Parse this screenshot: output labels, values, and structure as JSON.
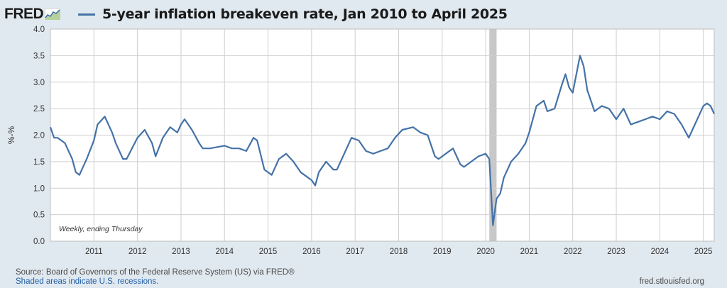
{
  "header": {
    "logo_text": "FRED",
    "logo_icon": "fred-graph-icon",
    "title": "5-year inflation breakeven rate, Jan 2010 to April 2025"
  },
  "colors": {
    "series": "#4572a7",
    "background": "#e1e9f0",
    "plot_background": "#ffffff",
    "grid": "#cfcfcf",
    "recession": "#c8c8c8"
  },
  "footer": {
    "source": "Source: Board of Governors of the Federal Reserve System (US) via FRED®",
    "note": "Shaded areas indicate U.S. recessions.",
    "url": "fred.stlouisfed.org"
  },
  "chart_data": {
    "type": "line",
    "title": "5-year inflation breakeven rate, Jan 2010 to April 2025",
    "ylabel": "%-%",
    "xlabel": "",
    "annotation": "Weekly, ending Thursday",
    "ylim": [
      0.0,
      4.0
    ],
    "xlim": [
      "2010-01",
      "2025-04"
    ],
    "yticks": [
      "0.0",
      "0.5",
      "1.0",
      "1.5",
      "2.0",
      "2.5",
      "3.0",
      "3.5",
      "4.0"
    ],
    "xticks": [
      "2011",
      "2012",
      "2013",
      "2014",
      "2015",
      "2016",
      "2017",
      "2018",
      "2019",
      "2020",
      "2021",
      "2022",
      "2023",
      "2024",
      "2025"
    ],
    "grid": true,
    "recession_shading": [
      {
        "start": "2020-02",
        "end": "2020-04"
      }
    ],
    "series": [
      {
        "x": [
          "2010-01",
          "2010-02",
          "2010-03",
          "2010-05",
          "2010-07",
          "2010-08",
          "2010-09",
          "2010-11",
          "2011-01",
          "2011-02",
          "2011-04",
          "2011-06",
          "2011-07",
          "2011-09",
          "2011-10",
          "2012-01",
          "2012-03",
          "2012-05",
          "2012-06",
          "2012-08",
          "2012-09",
          "2012-10",
          "2012-12",
          "2013-01",
          "2013-02",
          "2013-04",
          "2013-06",
          "2013-07",
          "2013-09",
          "2014-01",
          "2014-03",
          "2014-05",
          "2014-07",
          "2014-09",
          "2014-10",
          "2014-12",
          "2015-02",
          "2015-04",
          "2015-06",
          "2015-08",
          "2015-10",
          "2015-12",
          "2016-01",
          "2016-02",
          "2016-03",
          "2016-05",
          "2016-07",
          "2016-08",
          "2016-11",
          "2016-12",
          "2017-02",
          "2017-04",
          "2017-06",
          "2017-08",
          "2017-10",
          "2017-12",
          "2018-02",
          "2018-05",
          "2018-07",
          "2018-09",
          "2018-11",
          "2018-12",
          "2019-02",
          "2019-04",
          "2019-06",
          "2019-07",
          "2019-09",
          "2019-11",
          "2020-01",
          "2020-02",
          "2020-03",
          "2020-04",
          "2020-05",
          "2020-06",
          "2020-08",
          "2020-10",
          "2020-12",
          "2021-01",
          "2021-03",
          "2021-05",
          "2021-06",
          "2021-08",
          "2021-10",
          "2021-11",
          "2021-12",
          "2022-01",
          "2022-03",
          "2022-04",
          "2022-05",
          "2022-06",
          "2022-07",
          "2022-09",
          "2022-11",
          "2023-01",
          "2023-03",
          "2023-05",
          "2023-07",
          "2023-09",
          "2023-11",
          "2024-01",
          "2024-03",
          "2024-05",
          "2024-07",
          "2024-09",
          "2024-10",
          "2024-12",
          "2025-01",
          "2025-02",
          "2025-03",
          "2025-04"
        ],
        "y": [
          2.15,
          1.95,
          1.95,
          1.85,
          1.55,
          1.3,
          1.25,
          1.55,
          1.9,
          2.2,
          2.35,
          2.05,
          1.85,
          1.55,
          1.55,
          1.95,
          2.1,
          1.85,
          1.6,
          1.95,
          2.05,
          2.15,
          2.05,
          2.2,
          2.3,
          2.1,
          1.85,
          1.75,
          1.75,
          1.8,
          1.75,
          1.75,
          1.7,
          1.95,
          1.9,
          1.35,
          1.25,
          1.55,
          1.65,
          1.5,
          1.3,
          1.2,
          1.15,
          1.05,
          1.3,
          1.5,
          1.35,
          1.35,
          1.8,
          1.95,
          1.9,
          1.7,
          1.65,
          1.7,
          1.75,
          1.95,
          2.1,
          2.15,
          2.05,
          2.0,
          1.6,
          1.55,
          1.65,
          1.75,
          1.45,
          1.4,
          1.5,
          1.6,
          1.65,
          1.55,
          0.3,
          0.8,
          0.9,
          1.2,
          1.5,
          1.65,
          1.85,
          2.05,
          2.55,
          2.65,
          2.45,
          2.5,
          2.95,
          3.15,
          2.9,
          2.8,
          3.5,
          3.3,
          2.85,
          2.65,
          2.45,
          2.55,
          2.5,
          2.3,
          2.5,
          2.2,
          2.25,
          2.3,
          2.35,
          2.3,
          2.45,
          2.4,
          2.2,
          1.95,
          2.1,
          2.4,
          2.55,
          2.6,
          2.55,
          2.4
        ]
      }
    ]
  }
}
